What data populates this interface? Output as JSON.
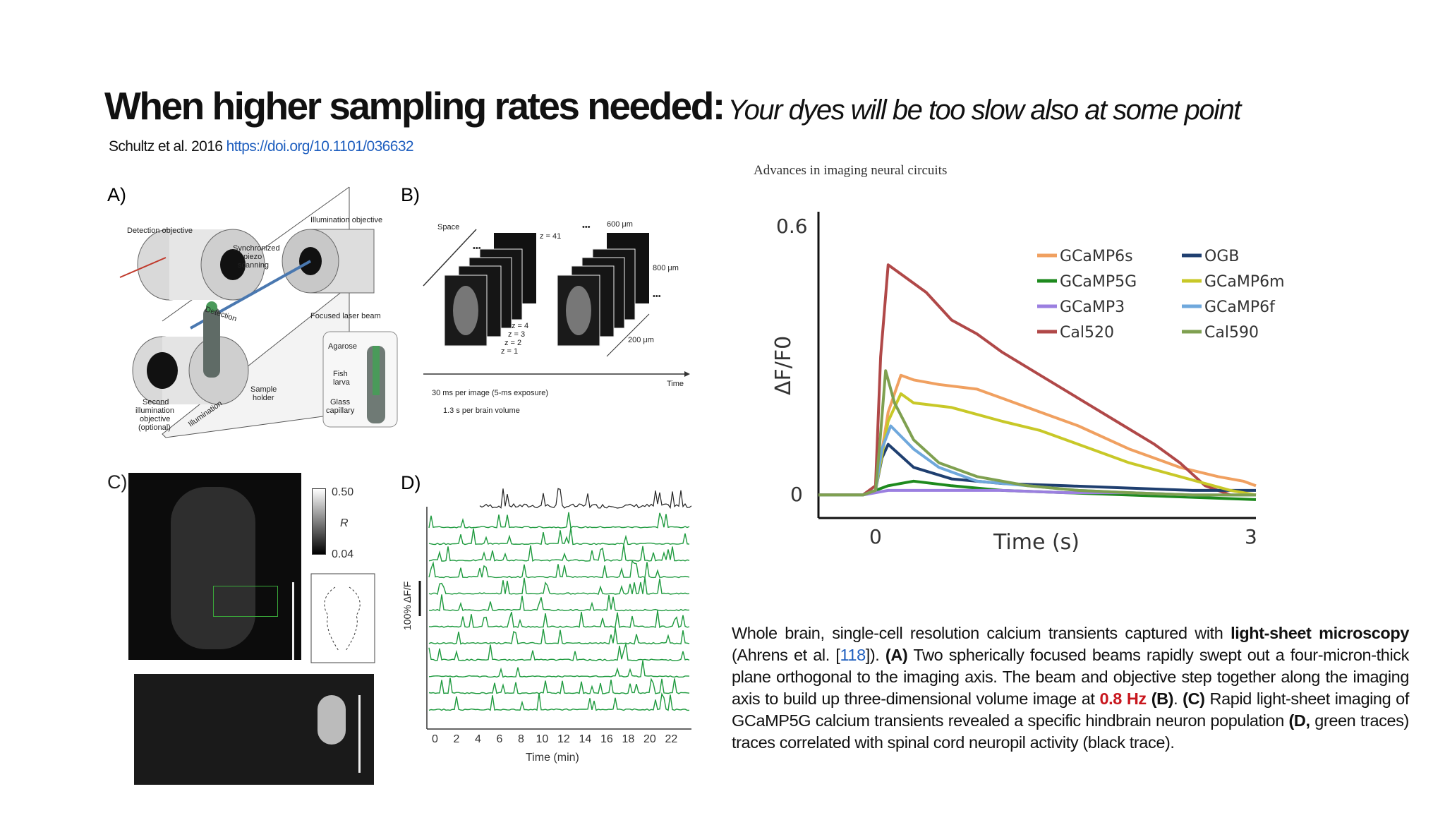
{
  "slide": {
    "title_bold": "When higher sampling rates needed:",
    "title_italic": "Your dyes will be too slow also at some point",
    "citation_text": "Schultz et al. 2016",
    "citation_link": "https://doi.org/10.1101/036632"
  },
  "figure_left": {
    "panel_a": {
      "letter": "A)",
      "labels": [
        "Detection objective",
        "Illumination objective",
        "Synchronized",
        "piezo",
        "scanning",
        "Detection",
        "Focused laser beam",
        "Agarose",
        "Fish",
        "larva",
        "Glass",
        "capillary",
        "Sample",
        "holder",
        "Second",
        "illumination",
        "objective",
        "(optional)",
        "Illumination"
      ]
    },
    "panel_b": {
      "letter": "B)",
      "space_label": "Space",
      "time_label": "Time",
      "z_labels": [
        "z = 41",
        "z = 4",
        "z = 3",
        "z = 2",
        "z = 1"
      ],
      "dim_600": "600 μm",
      "dim_800": "800 μm",
      "dim_200": "200 μm",
      "dots": "•••",
      "exposure": "30 ms per image (5-ms exposure)",
      "volume": "1.3 s per brain volume"
    },
    "panel_c": {
      "letter": "C)",
      "scale_max": "0.50",
      "scale_label": "R",
      "scale_min": "0.04"
    },
    "panel_d": {
      "letter": "D)",
      "ylabel": "100% ΔF/F",
      "xlabel": "Time (min)",
      "xticks": [
        "0",
        "2",
        "4",
        "6",
        "8",
        "10",
        "12",
        "14",
        "16",
        "18",
        "20",
        "22"
      ]
    }
  },
  "figure_right": {
    "header": "Advances in imaging neural circuits",
    "colors": {
      "GCaMP6s": "#f0a060",
      "GCaMP5G": "#1e8a1e",
      "GCaMP3": "#9b7fe0",
      "Cal520": "#b04848",
      "OGB": "#1f3f70",
      "GCaMP6m": "#c8c828",
      "GCaMP6f": "#6fa8dc",
      "Cal590": "#7fa050"
    },
    "legend_items": [
      "GCaMP6s",
      "GCaMP5G",
      "GCaMP3",
      "Cal520",
      "OGB",
      "GCaMP6m",
      "GCaMP6f",
      "Cal590"
    ]
  },
  "chart_data": {
    "type": "line",
    "title": "",
    "xlabel": "Time (s)",
    "ylabel": "ΔF/F0",
    "xlim": [
      -0.45,
      3
    ],
    "ylim": [
      -0.05,
      0.6
    ],
    "xticks": [
      "0",
      "3"
    ],
    "yticks": [
      "0",
      "0.6"
    ],
    "legend_position": "top-right",
    "series": [
      {
        "name": "GCaMP6s",
        "color": "#f0a060",
        "x": [
          -0.45,
          -0.1,
          0,
          0.1,
          0.2,
          0.3,
          0.5,
          0.8,
          1.0,
          1.3,
          1.6,
          2.0,
          2.4,
          2.7,
          2.9,
          3.0
        ],
        "y": [
          0,
          0,
          0.01,
          0.18,
          0.26,
          0.25,
          0.24,
          0.23,
          0.21,
          0.18,
          0.15,
          0.1,
          0.06,
          0.04,
          0.03,
          0.02
        ]
      },
      {
        "name": "GCaMP5G",
        "color": "#1e8a1e",
        "x": [
          -0.45,
          -0.1,
          0,
          0.1,
          0.3,
          0.6,
          1.0,
          1.5,
          2.0,
          2.5,
          3.0
        ],
        "y": [
          0,
          0,
          0.01,
          0.02,
          0.03,
          0.02,
          0.01,
          0.005,
          0.0,
          -0.005,
          -0.01
        ]
      },
      {
        "name": "GCaMP3",
        "color": "#9b7fe0",
        "x": [
          -0.45,
          -0.1,
          0,
          0.1,
          0.5,
          1.0,
          1.5,
          2.0,
          2.5,
          3.0
        ],
        "y": [
          0,
          0,
          0.005,
          0.01,
          0.01,
          0.01,
          0.005,
          0.005,
          0.0,
          0.0
        ]
      },
      {
        "name": "Cal520",
        "color": "#b04848",
        "x": [
          -0.45,
          -0.1,
          0,
          0.04,
          0.1,
          0.2,
          0.4,
          0.6,
          0.8,
          1.0,
          1.3,
          1.6,
          1.9,
          2.2,
          2.4,
          2.6,
          2.8,
          3.0
        ],
        "y": [
          0,
          0,
          0.02,
          0.3,
          0.5,
          0.48,
          0.44,
          0.38,
          0.35,
          0.31,
          0.26,
          0.21,
          0.16,
          0.11,
          0.07,
          0.02,
          0.0,
          0.0
        ]
      },
      {
        "name": "OGB",
        "color": "#1f3f70",
        "x": [
          -0.45,
          -0.1,
          0,
          0.05,
          0.1,
          0.3,
          0.6,
          1.0,
          1.5,
          2.0,
          2.5,
          3.0
        ],
        "y": [
          0,
          0,
          0.01,
          0.08,
          0.11,
          0.06,
          0.035,
          0.025,
          0.02,
          0.015,
          0.01,
          0.01
        ]
      },
      {
        "name": "GCaMP6m",
        "color": "#c8c828",
        "x": [
          -0.45,
          -0.1,
          0,
          0.1,
          0.2,
          0.3,
          0.6,
          1.0,
          1.3,
          1.6,
          2.0,
          2.4,
          2.8,
          3.0
        ],
        "y": [
          0,
          0,
          0.01,
          0.16,
          0.22,
          0.2,
          0.19,
          0.16,
          0.14,
          0.11,
          0.07,
          0.04,
          0.01,
          0.0
        ]
      },
      {
        "name": "GCaMP6f",
        "color": "#6fa8dc",
        "x": [
          -0.45,
          -0.1,
          0,
          0.05,
          0.12,
          0.3,
          0.5,
          0.8,
          1.2,
          1.6,
          2.0,
          2.5,
          3.0
        ],
        "y": [
          0,
          0,
          0.01,
          0.1,
          0.15,
          0.1,
          0.06,
          0.03,
          0.02,
          0.01,
          0.005,
          0.0,
          0.0
        ]
      },
      {
        "name": "Cal590",
        "color": "#7fa050",
        "x": [
          -0.45,
          -0.1,
          0,
          0.03,
          0.08,
          0.15,
          0.3,
          0.5,
          0.8,
          1.2,
          1.6,
          2.0,
          2.5,
          3.0
        ],
        "y": [
          0,
          0,
          0.01,
          0.1,
          0.27,
          0.2,
          0.12,
          0.07,
          0.04,
          0.02,
          0.01,
          0.005,
          0.0,
          0.0
        ]
      }
    ]
  },
  "caption": {
    "p1": "Whole brain, single-cell resolution calcium transients captured with ",
    "b1": "light-sheet microscopy",
    "p2": " (Ahrens et al. [",
    "ref": "118",
    "p3": "]). ",
    "b2": "(A)",
    "p4": " Two spherically focused beams rapidly swept out a four-micron-thick plane orthogonal to the imaging axis. The beam and objective step together along the imaging axis to build up three-dimensional volume image at ",
    "red": "0.8 Hz",
    "p5": " ",
    "b3": "(B)",
    "p6": ". ",
    "b4": "(C)",
    "p7": " Rapid light-sheet imaging of GCaMP5G calcium transients revealed a specific hindbrain neuron population ",
    "b5": "(D,",
    "p8": " green traces) traces correlated with spinal cord neuropil activity (black trace)."
  }
}
